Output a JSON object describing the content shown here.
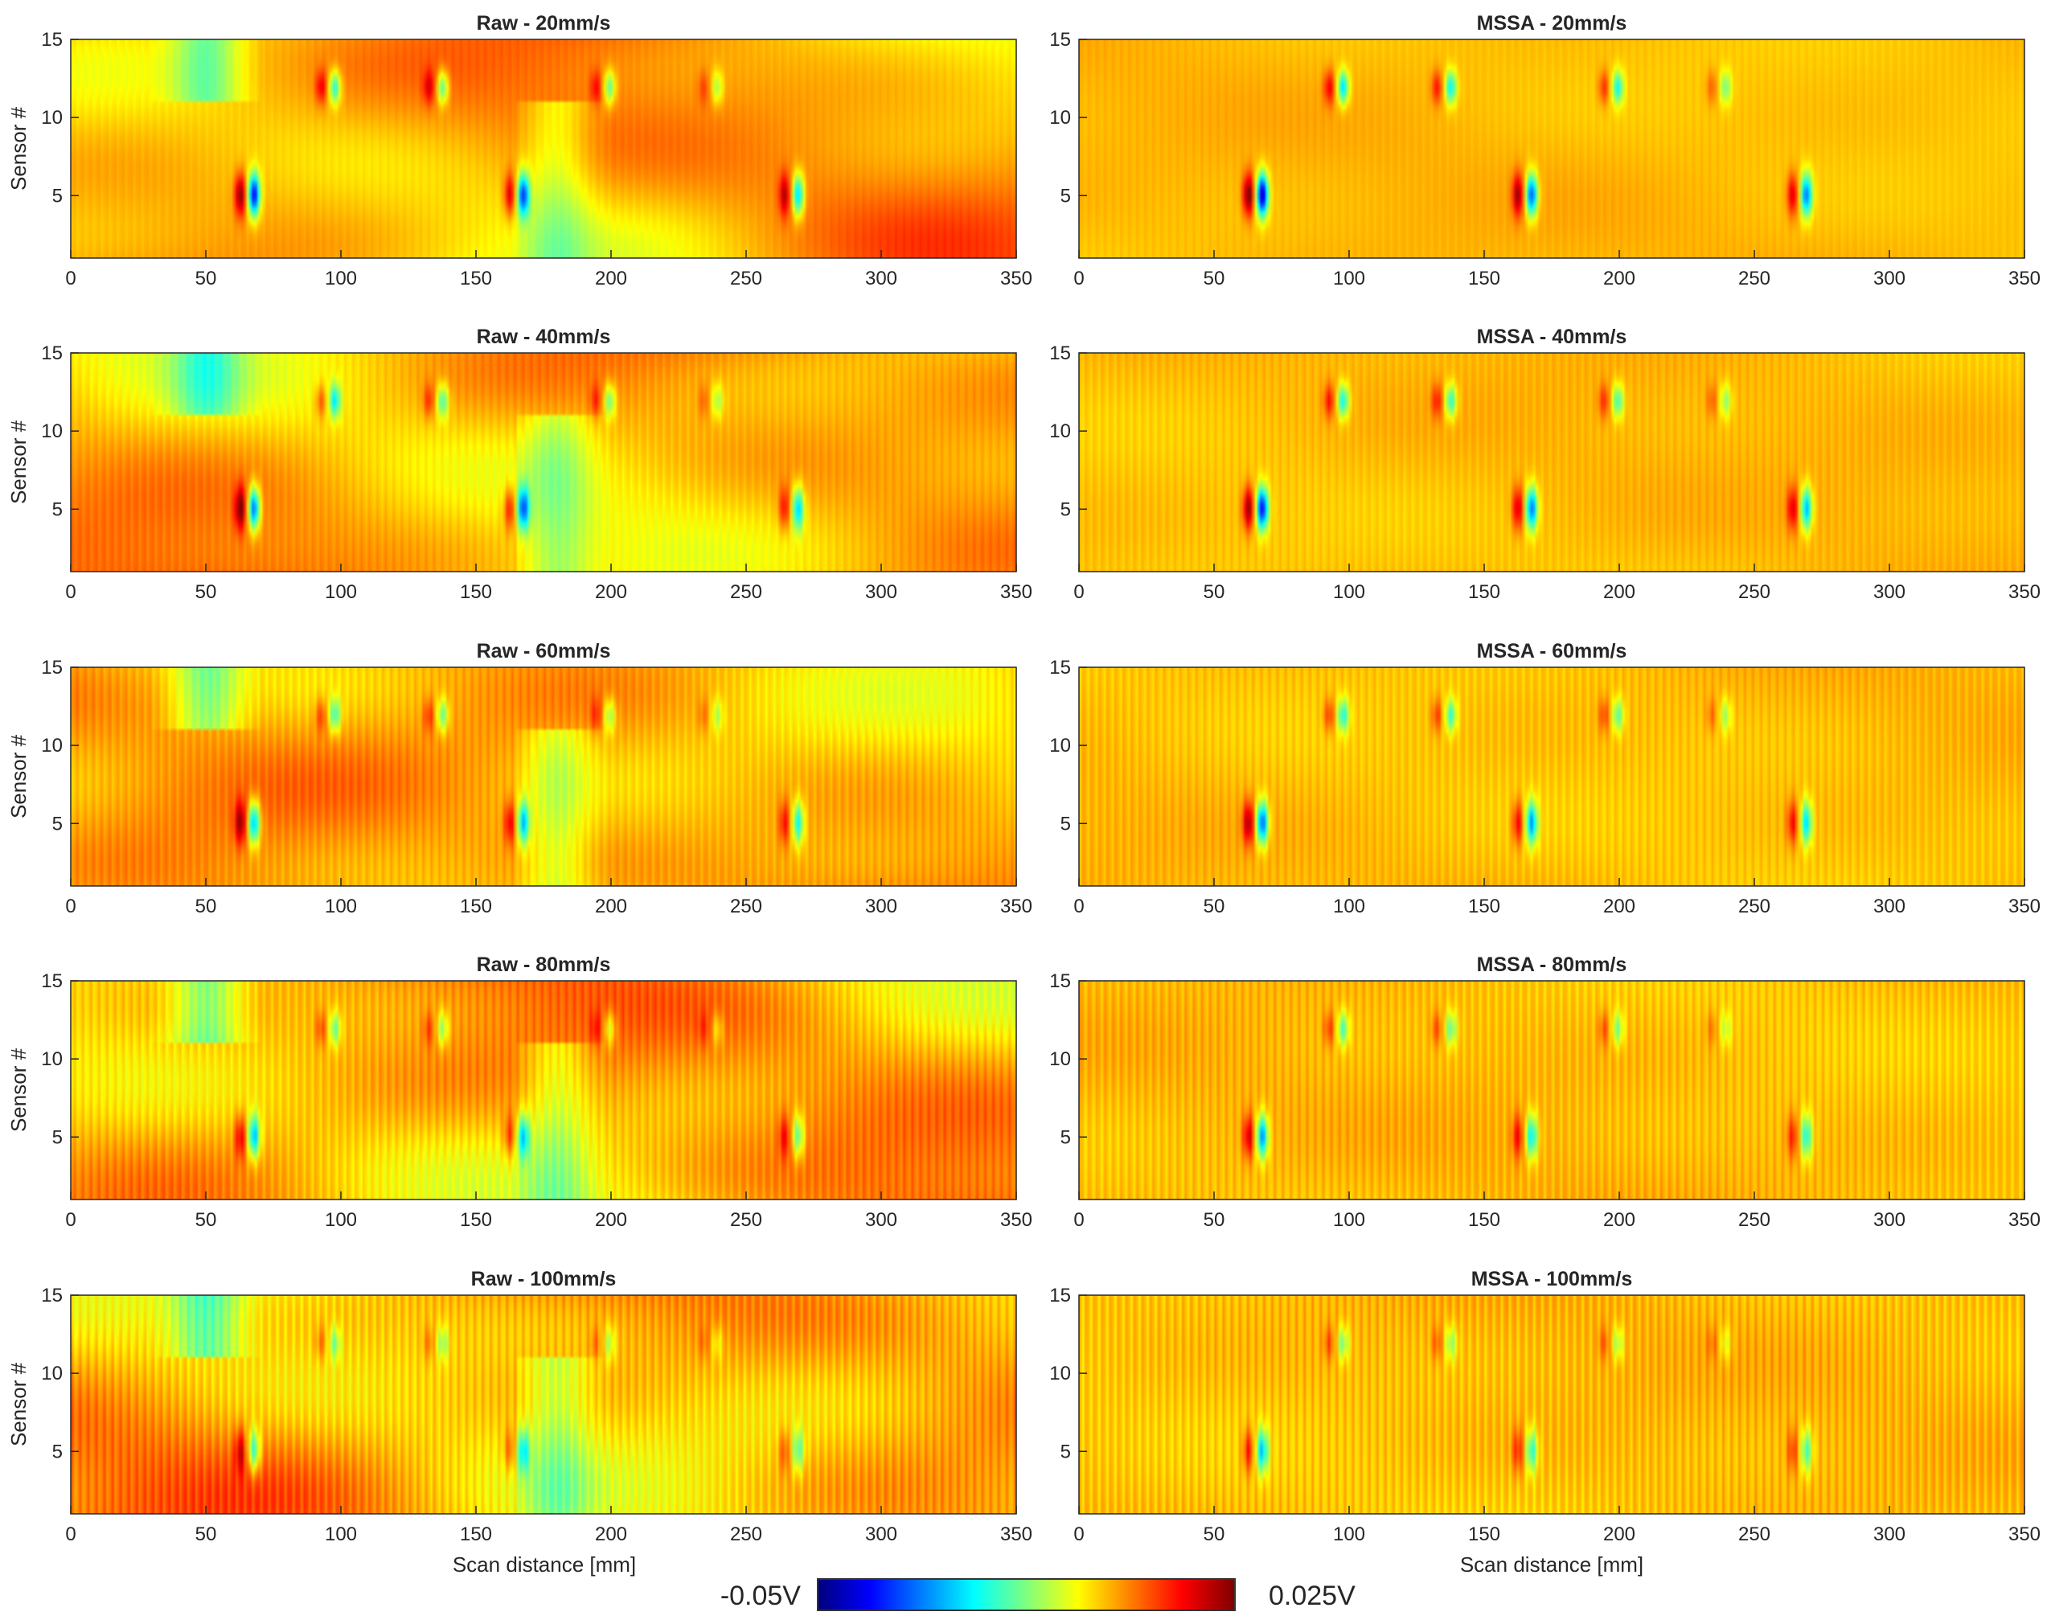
{
  "chart_data": {
    "type": "heatmap",
    "layout": "grid",
    "rows": 5,
    "cols": 2,
    "xlabel": "Scan distance [mm]",
    "ylabel": "Sensor #",
    "x_ticks": [
      0,
      50,
      100,
      150,
      200,
      250,
      300,
      350
    ],
    "y_ticks": [
      5,
      10,
      15
    ],
    "xlim": [
      0,
      350
    ],
    "ylim": [
      1,
      15
    ],
    "colormap": "jet",
    "color_range": [
      -0.05,
      0.025
    ],
    "colorbar": {
      "min_label": "-0.05V",
      "max_label": "0.025V",
      "position": "bottom"
    },
    "panels": [
      {
        "title": "Raw - 20mm/s",
        "method": "raw",
        "speed": 20
      },
      {
        "title": "MSSA - 20mm/s",
        "method": "mssa",
        "speed": 20
      },
      {
        "title": "Raw - 40mm/s",
        "method": "raw",
        "speed": 40
      },
      {
        "title": "MSSA - 40mm/s",
        "method": "mssa",
        "speed": 40
      },
      {
        "title": "Raw - 60mm/s",
        "method": "raw",
        "speed": 60
      },
      {
        "title": "MSSA - 60mm/s",
        "method": "mssa",
        "speed": 60
      },
      {
        "title": "Raw - 80mm/s",
        "method": "raw",
        "speed": 80
      },
      {
        "title": "MSSA - 80mm/s",
        "method": "mssa",
        "speed": 80
      },
      {
        "title": "Raw - 100mm/s",
        "method": "raw",
        "speed": 100
      },
      {
        "title": "MSSA - 100mm/s",
        "method": "mssa",
        "speed": 100
      }
    ],
    "defect_signatures": [
      {
        "x": 65,
        "sensor": 5,
        "strength": 1.0
      },
      {
        "x": 165,
        "sensor": 5,
        "strength": 0.8
      },
      {
        "x": 267,
        "sensor": 5,
        "strength": 0.7
      },
      {
        "x": 95,
        "sensor": 12,
        "strength": 0.55
      },
      {
        "x": 135,
        "sensor": 12,
        "strength": 0.5
      },
      {
        "x": 197,
        "sensor": 12,
        "strength": 0.45
      },
      {
        "x": 237,
        "sensor": 12,
        "strength": 0.3
      }
    ]
  },
  "colors": {
    "jet": [
      "#00007f",
      "#0000ff",
      "#007fff",
      "#00ffff",
      "#7fff7f",
      "#ffff00",
      "#ff7f00",
      "#ff0000",
      "#7f0000"
    ]
  }
}
